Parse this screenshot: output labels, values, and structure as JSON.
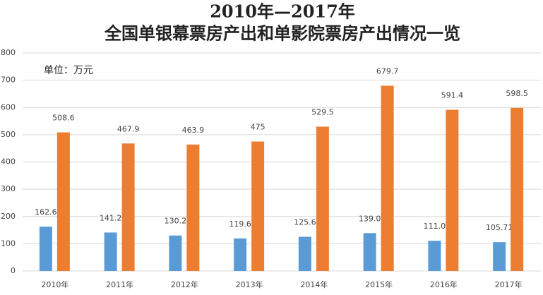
{
  "chart_data": {
    "type": "bar",
    "title": "2010年—2017年",
    "subtitle": "全国单银幕票房产出和单影院票房产出情况一览",
    "annotation": "单位：万元",
    "categories": [
      "2010年",
      "2011年",
      "2012年",
      "2013年",
      "2014年",
      "2015年",
      "2016年",
      "2017年"
    ],
    "series": [
      {
        "color": "#5b9bd5",
        "values": [
          162.6,
          141.2,
          130.2,
          119.6,
          125.6,
          139.0,
          111.0,
          105.71
        ],
        "value_labels": [
          "162.6",
          "141.2",
          "130.2",
          "119.6",
          "125.6",
          "139.0",
          "111.0",
          "105.71"
        ]
      },
      {
        "color": "#ed7d31",
        "values": [
          508.6,
          467.9,
          463.9,
          475,
          529.5,
          679.7,
          591.4,
          598.5
        ]
      }
    ],
    "ylim": [
      0,
      800
    ],
    "yticks": [
      0,
      100,
      200,
      300,
      400,
      500,
      600,
      700,
      800
    ],
    "grid": true
  }
}
